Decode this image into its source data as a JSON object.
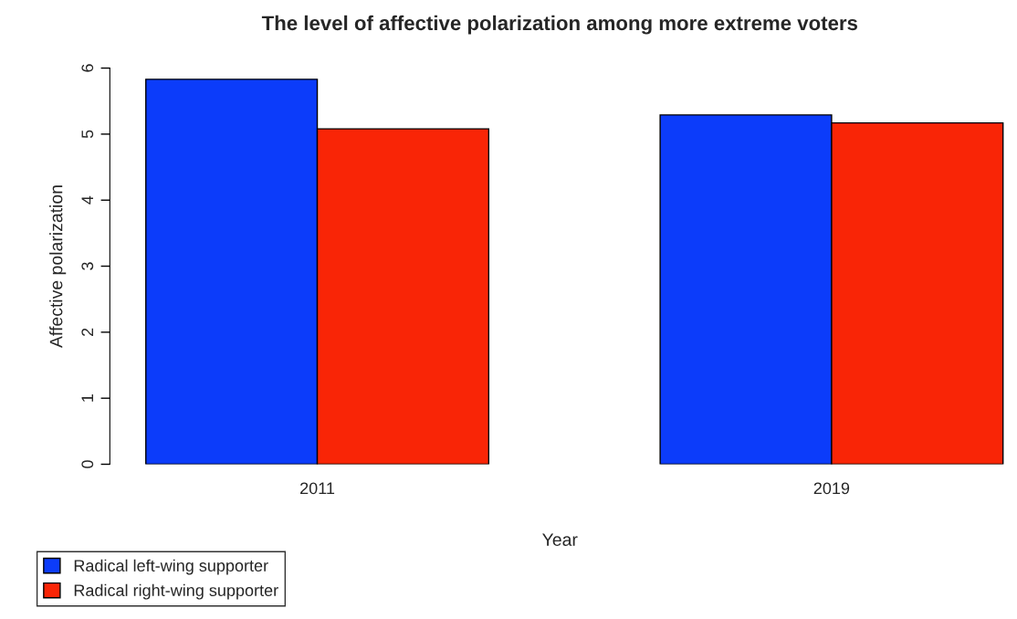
{
  "chart_data": {
    "type": "bar",
    "title": "The level of affective polarization among more extreme voters",
    "xlabel": "Year",
    "ylabel": "Affective polarization",
    "categories": [
      "2011",
      "2019"
    ],
    "series": [
      {
        "name": "Radical left-wing supporter",
        "color": "#0c3cfa",
        "values": [
          5.83,
          5.29
        ]
      },
      {
        "name": "Radical right-wing supporter",
        "color": "#f92506",
        "values": [
          5.08,
          5.17
        ]
      }
    ],
    "ylim": [
      0,
      6
    ],
    "yticks": [
      0,
      1,
      2,
      3,
      4,
      5,
      6
    ],
    "grid": false,
    "legend": "bottom left"
  }
}
